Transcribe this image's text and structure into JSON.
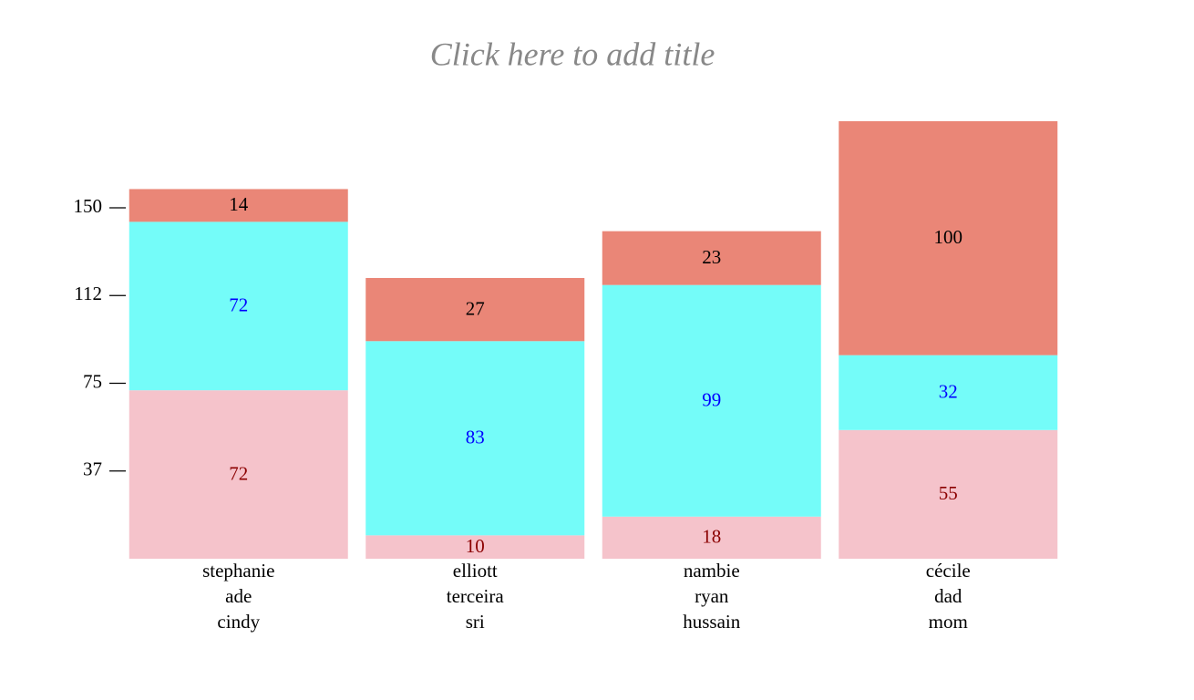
{
  "chart_data": {
    "type": "stacked_bar",
    "title": "Click here to add title",
    "categories": [
      [
        "stephanie",
        "ade",
        "cindy"
      ],
      [
        "elliott",
        "terceira",
        "sri"
      ],
      [
        "nambie",
        "ryan",
        "hussain"
      ],
      [
        "cécile",
        "dad",
        "mom"
      ]
    ],
    "series": [
      {
        "color": "#f5c3cb",
        "label_color": "#8b0000",
        "values": [
          72,
          10,
          18,
          55
        ]
      },
      {
        "color": "#74fcf9",
        "label_color": "#0000ff",
        "values": [
          72,
          83,
          99,
          32
        ]
      },
      {
        "color": "#ea8677",
        "label_color": "#000000",
        "values": [
          14,
          27,
          23,
          100
        ]
      }
    ],
    "ylim": [
      0,
      187
    ],
    "yticks": [
      {
        "value": 37.5,
        "label": "37"
      },
      {
        "value": 75,
        "label": "75"
      },
      {
        "value": 112.5,
        "label": "112"
      },
      {
        "value": 150,
        "label": "150"
      }
    ]
  }
}
